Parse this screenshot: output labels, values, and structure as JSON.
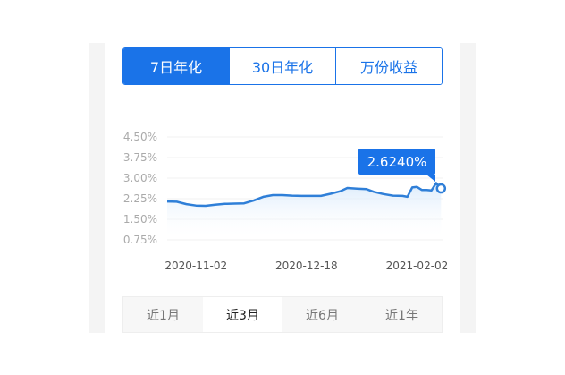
{
  "tabs": [
    {
      "label": "7日年化",
      "active": true
    },
    {
      "label": "30日年化",
      "active": false
    },
    {
      "label": "万份收益",
      "active": false
    }
  ],
  "ranges": [
    {
      "label": "近1月",
      "active": false
    },
    {
      "label": "近3月",
      "active": true
    },
    {
      "label": "近6月",
      "active": false
    },
    {
      "label": "近1年",
      "active": false
    }
  ],
  "colors": {
    "accent": "#1a73e8",
    "line": "#2f7fd8"
  },
  "chart_data": {
    "type": "area",
    "title": "",
    "xlabel": "",
    "ylabel": "",
    "ylim": [
      0.75,
      4.5
    ],
    "yticks": [
      "4.50%",
      "3.75%",
      "3.00%",
      "2.25%",
      "1.50%",
      "0.75%"
    ],
    "ytick_values": [
      4.5,
      3.75,
      3.0,
      2.25,
      1.5,
      0.75
    ],
    "xlim": [
      "2020-10-21",
      "2021-02-13"
    ],
    "xticks": [
      "2020-11-02",
      "2020-12-18",
      "2021-02-02"
    ],
    "grid": true,
    "tooltip": {
      "label": "2.6240%",
      "date": "2021-02-12",
      "value": 2.624
    },
    "series": [
      {
        "x": [
          "2020-10-21",
          "2020-10-25",
          "2020-10-29",
          "2020-11-02",
          "2020-11-06",
          "2020-11-10",
          "2020-11-14",
          "2020-11-18",
          "2020-11-22",
          "2020-11-26",
          "2020-11-30",
          "2020-12-04",
          "2020-12-08",
          "2020-12-12",
          "2020-12-16",
          "2020-12-20",
          "2020-12-24",
          "2020-12-28",
          "2021-01-01",
          "2021-01-04",
          "2021-01-08",
          "2021-01-12",
          "2021-01-15",
          "2021-01-19",
          "2021-01-23",
          "2021-01-27",
          "2021-01-29",
          "2021-01-31",
          "2021-02-02",
          "2021-02-04",
          "2021-02-06",
          "2021-02-08",
          "2021-02-10",
          "2021-02-12"
        ],
        "values": [
          2.15,
          2.14,
          2.05,
          2.0,
          1.99,
          2.03,
          2.06,
          2.07,
          2.08,
          2.18,
          2.32,
          2.38,
          2.38,
          2.36,
          2.35,
          2.35,
          2.35,
          2.43,
          2.52,
          2.64,
          2.62,
          2.6,
          2.5,
          2.42,
          2.36,
          2.35,
          2.32,
          2.66,
          2.68,
          2.57,
          2.57,
          2.55,
          2.82,
          2.624
        ]
      }
    ]
  }
}
